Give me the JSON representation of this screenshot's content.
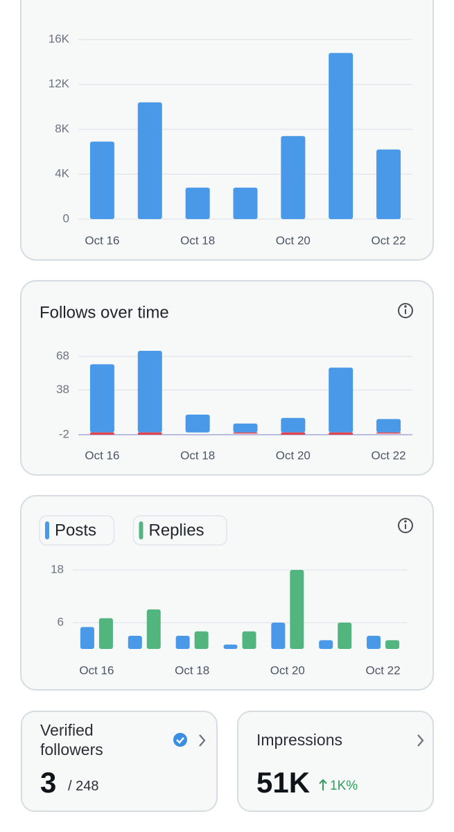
{
  "chart_data": [
    {
      "type": "bar",
      "categories": [
        "Oct 16",
        null,
        "Oct 18",
        null,
        "Oct 20",
        null,
        "Oct 22"
      ],
      "series": [
        {
          "color": "#4a98e8",
          "values": [
            6900,
            10400,
            2800,
            2800,
            7400,
            14800,
            6200
          ]
        }
      ],
      "ylim": [
        0,
        16000
      ],
      "yticks": [
        0,
        {
          "value": 4000,
          "label": "4K"
        },
        {
          "value": 8000,
          "label": "8K"
        },
        {
          "value": 12000,
          "label": "12K"
        },
        {
          "value": 16000,
          "label": "16K"
        }
      ],
      "grid": true
    },
    {
      "type": "bar",
      "title": "Follows over time",
      "categories": [
        "Oct 16",
        null,
        "Oct 18",
        null,
        "Oct 20",
        null,
        "Oct 22"
      ],
      "series": [
        {
          "color": "#4a98e8",
          "values": [
            61,
            73,
            16,
            8,
            13,
            58,
            12
          ]
        },
        {
          "color": "#e0454f",
          "values": [
            -2,
            -2,
            0,
            -1,
            -2,
            -2,
            -1
          ]
        }
      ],
      "ylim": [
        -2,
        73
      ],
      "yticks": [
        -2,
        38,
        68
      ],
      "grid": true
    },
    {
      "type": "grouped-bar",
      "categories": [
        "Oct 16",
        null,
        "Oct 18",
        null,
        "Oct 20",
        null,
        "Oct 22"
      ],
      "series": [
        {
          "name": "Posts",
          "color": "#4a98e8",
          "values": [
            5,
            3,
            3,
            1,
            6,
            2,
            3
          ]
        },
        {
          "name": "Replies",
          "color": "#52b57e",
          "values": [
            7,
            9,
            4,
            4,
            18,
            6,
            2
          ]
        }
      ],
      "ylim": [
        0,
        18
      ],
      "yticks": [
        6,
        18
      ],
      "grid": true
    }
  ],
  "cards": [
    {
      "title": "Verified followers",
      "value": "3",
      "total": "/ 248"
    },
    {
      "title": "Impressions",
      "value": "51K",
      "change": "1K%"
    }
  ]
}
